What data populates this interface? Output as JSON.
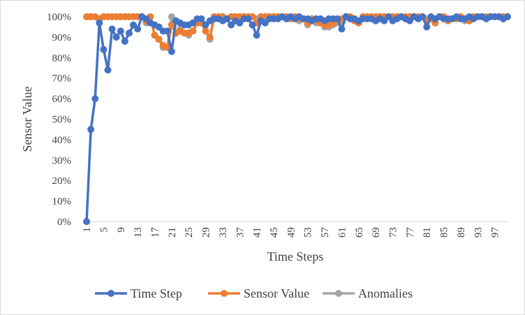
{
  "chart_data": {
    "type": "line",
    "title": "",
    "xlabel": "Time Steps",
    "ylabel": "Sensor Value",
    "ylim": [
      0,
      1
    ],
    "y_ticks": [
      "0%",
      "10%",
      "20%",
      "30%",
      "40%",
      "50%",
      "60%",
      "70%",
      "80%",
      "90%",
      "100%"
    ],
    "x_ticks": [
      "1",
      "5",
      "9",
      "13",
      "17",
      "21",
      "25",
      "29",
      "33",
      "37",
      "41",
      "45",
      "49",
      "53",
      "57",
      "61",
      "65",
      "69",
      "73",
      "77",
      "81",
      "85",
      "89",
      "93",
      "97"
    ],
    "grid": false,
    "legend_position": "bottom",
    "x": [
      1,
      2,
      3,
      4,
      5,
      6,
      7,
      8,
      9,
      10,
      11,
      12,
      13,
      14,
      15,
      16,
      17,
      18,
      19,
      20,
      21,
      22,
      23,
      24,
      25,
      26,
      27,
      28,
      29,
      30,
      31,
      32,
      33,
      34,
      35,
      36,
      37,
      38,
      39,
      40,
      41,
      42,
      43,
      44,
      45,
      46,
      47,
      48,
      49,
      50,
      51,
      52,
      53,
      54,
      55,
      56,
      57,
      58,
      59,
      60,
      61,
      62,
      63,
      64,
      65,
      66,
      67,
      68,
      69,
      70,
      71,
      72,
      73,
      74,
      75,
      76,
      77,
      78,
      79,
      80,
      81,
      82,
      83,
      84,
      85,
      86,
      87,
      88,
      89,
      90,
      91,
      92,
      93,
      94,
      95,
      96,
      97,
      98,
      99,
      100
    ],
    "series": [
      {
        "name": "Time Step",
        "color": "#4472C4",
        "values": [
          0.0,
          0.45,
          0.6,
          0.97,
          0.84,
          0.74,
          0.94,
          0.9,
          0.93,
          0.88,
          0.92,
          0.96,
          0.94,
          1.0,
          0.99,
          0.97,
          0.96,
          0.95,
          0.93,
          0.93,
          0.83,
          0.98,
          0.97,
          0.96,
          0.96,
          0.97,
          0.99,
          0.99,
          0.96,
          0.98,
          0.99,
          0.99,
          0.98,
          0.99,
          0.96,
          0.98,
          0.97,
          0.99,
          0.99,
          0.96,
          0.91,
          0.98,
          0.97,
          0.99,
          0.99,
          0.99,
          1.0,
          0.99,
          1.0,
          0.99,
          1.0,
          0.99,
          0.99,
          0.98,
          0.99,
          0.99,
          0.98,
          0.99,
          0.99,
          0.99,
          0.94,
          1.0,
          0.99,
          0.99,
          0.98,
          0.99,
          0.99,
          0.99,
          0.98,
          0.99,
          0.98,
          1.0,
          0.98,
          0.99,
          1.0,
          0.99,
          0.98,
          1.0,
          0.99,
          1.0,
          0.95,
          1.0,
          0.99,
          1.0,
          0.99,
          0.99,
          0.99,
          1.0,
          0.99,
          0.99,
          1.0,
          0.99,
          1.0,
          1.0,
          0.99,
          1.0,
          1.0,
          1.0,
          0.99,
          1.0
        ]
      },
      {
        "name": "Sensor Value",
        "color": "#ED7D31",
        "values": [
          1.0,
          1.0,
          1.0,
          0.99,
          1.0,
          1.0,
          1.0,
          1.0,
          1.0,
          1.0,
          1.0,
          1.0,
          1.0,
          1.0,
          0.98,
          1.0,
          0.91,
          0.89,
          0.86,
          0.85,
          0.96,
          0.92,
          0.93,
          0.92,
          0.92,
          0.93,
          0.97,
          0.97,
          0.93,
          0.9,
          1.0,
          1.0,
          1.0,
          0.99,
          1.0,
          1.0,
          1.0,
          1.0,
          1.0,
          1.0,
          0.97,
          1.0,
          1.0,
          1.0,
          1.0,
          1.0,
          1.0,
          1.0,
          0.99,
          1.0,
          0.99,
          0.99,
          0.97,
          0.99,
          0.98,
          0.97,
          0.96,
          0.96,
          0.97,
          0.98,
          0.99,
          1.0,
          1.0,
          0.98,
          0.97,
          1.0,
          1.0,
          1.0,
          1.0,
          1.0,
          1.0,
          1.0,
          1.0,
          1.0,
          1.0,
          1.0,
          1.0,
          1.0,
          1.0,
          1.0,
          0.98,
          0.99,
          0.97,
          1.0,
          1.0,
          0.98,
          0.99,
          0.99,
          1.0,
          0.99,
          0.98,
          1.0,
          1.0,
          1.0,
          1.0,
          1.0,
          1.0,
          1.0,
          1.0,
          1.0
        ]
      },
      {
        "name": "Anomalies",
        "color": "#A5A5A5",
        "values": [
          1.0,
          1.0,
          1.0,
          0.99,
          1.0,
          1.0,
          1.0,
          1.0,
          1.0,
          1.0,
          1.0,
          1.0,
          1.0,
          1.0,
          0.97,
          1.0,
          0.91,
          0.89,
          0.85,
          0.85,
          1.0,
          0.92,
          0.94,
          0.92,
          0.91,
          0.93,
          0.97,
          0.97,
          0.93,
          0.89,
          1.0,
          1.0,
          1.0,
          0.99,
          1.0,
          1.0,
          1.0,
          1.0,
          1.0,
          1.0,
          0.99,
          1.0,
          1.0,
          1.0,
          1.0,
          1.0,
          1.0,
          1.0,
          0.99,
          1.0,
          0.98,
          0.99,
          0.96,
          0.99,
          0.97,
          0.97,
          0.95,
          0.95,
          0.96,
          0.97,
          0.98,
          1.0,
          1.0,
          0.98,
          0.97,
          1.0,
          1.0,
          1.0,
          1.0,
          1.0,
          1.0,
          1.0,
          1.0,
          1.0,
          1.0,
          1.0,
          1.0,
          1.0,
          1.0,
          1.0,
          0.99,
          0.99,
          0.97,
          1.0,
          1.0,
          0.98,
          0.99,
          0.99,
          1.0,
          0.98,
          0.98,
          1.0,
          1.0,
          1.0,
          1.0,
          1.0,
          1.0,
          1.0,
          1.0,
          1.0
        ]
      }
    ]
  }
}
